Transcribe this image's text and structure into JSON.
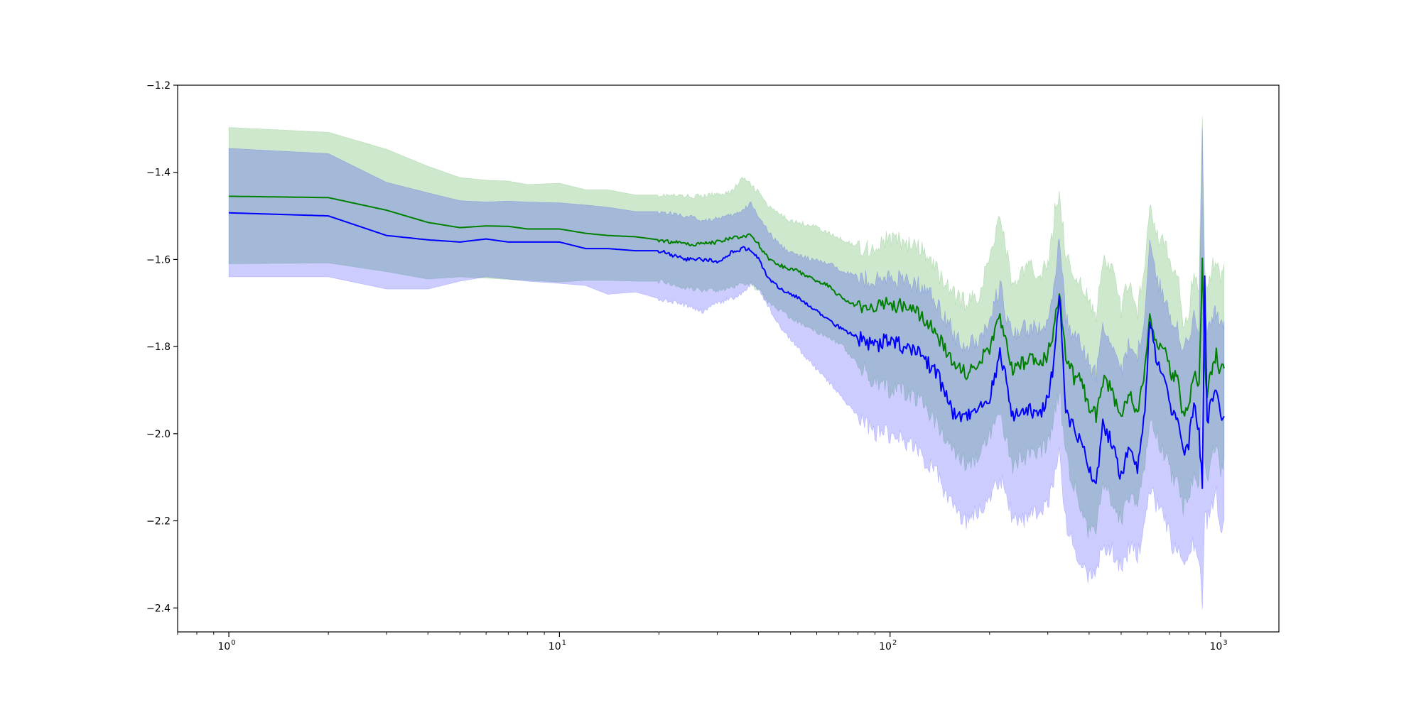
{
  "chart_data": {
    "type": "line",
    "title": "",
    "xlabel": "",
    "ylabel": "",
    "xscale": "log",
    "xlim": [
      0.7,
      1500
    ],
    "ylim": [
      -2.455,
      -1.2
    ],
    "grid": false,
    "legend": "none",
    "x_ticks": [
      {
        "base": "10",
        "exp": "0",
        "value": 1
      },
      {
        "base": "10",
        "exp": "1",
        "value": 10
      },
      {
        "base": "10",
        "exp": "2",
        "value": 100
      },
      {
        "base": "10",
        "exp": "3",
        "value": 1000
      }
    ],
    "y_ticks": [
      {
        "label": "−1.2",
        "value": -1.2
      },
      {
        "label": "−1.4",
        "value": -1.4
      },
      {
        "label": "−1.6",
        "value": -1.6
      },
      {
        "label": "−1.8",
        "value": -1.8
      },
      {
        "label": "−2.0",
        "value": -2.0
      },
      {
        "label": "−2.2",
        "value": -2.2
      },
      {
        "label": "−2.4",
        "value": -2.4
      }
    ],
    "series": [
      {
        "color": "#008000",
        "band_color": "#2ca02c",
        "band_opacity": 0.24,
        "x": [
          1,
          2,
          3,
          4,
          5,
          6,
          7,
          8,
          10,
          12,
          14,
          17,
          20,
          24,
          27,
          30,
          33,
          36,
          38,
          40,
          43,
          47,
          52,
          58,
          65,
          72,
          80,
          90,
          100,
          110,
          125,
          140,
          155,
          170,
          185,
          200,
          215,
          225,
          235,
          250,
          265,
          280,
          300,
          315,
          325,
          340,
          360,
          380,
          400,
          420,
          440,
          470,
          500,
          530,
          560,
          590,
          610,
          625,
          650,
          680,
          710,
          740,
          770,
          800,
          830,
          860,
          880,
          895,
          910,
          940,
          970,
          1000,
          1024
        ],
        "mean": [
          -1.455,
          -1.458,
          -1.487,
          -1.515,
          -1.527,
          -1.523,
          -1.524,
          -1.53,
          -1.53,
          -1.54,
          -1.545,
          -1.548,
          -1.555,
          -1.565,
          -1.565,
          -1.56,
          -1.55,
          -1.548,
          -1.545,
          -1.565,
          -1.6,
          -1.615,
          -1.625,
          -1.645,
          -1.66,
          -1.69,
          -1.71,
          -1.71,
          -1.7,
          -1.71,
          -1.73,
          -1.78,
          -1.84,
          -1.86,
          -1.84,
          -1.8,
          -1.74,
          -1.8,
          -1.86,
          -1.84,
          -1.83,
          -1.84,
          -1.82,
          -1.75,
          -1.67,
          -1.82,
          -1.87,
          -1.88,
          -1.94,
          -1.96,
          -1.88,
          -1.9,
          -1.97,
          -1.9,
          -1.95,
          -1.85,
          -1.72,
          -1.76,
          -1.8,
          -1.82,
          -1.86,
          -1.87,
          -1.96,
          -1.95,
          -1.86,
          -1.9,
          -1.59,
          -1.85,
          -1.9,
          -1.86,
          -1.82,
          -1.86,
          -1.85
        ],
        "lower": [
          -1.61,
          -1.608,
          -1.628,
          -1.645,
          -1.64,
          -1.643,
          -1.646,
          -1.648,
          -1.652,
          -1.648,
          -1.648,
          -1.65,
          -1.65,
          -1.665,
          -1.67,
          -1.67,
          -1.665,
          -1.655,
          -1.66,
          -1.67,
          -1.7,
          -1.72,
          -1.74,
          -1.76,
          -1.78,
          -1.8,
          -1.84,
          -1.88,
          -1.9,
          -1.9,
          -1.93,
          -1.98,
          -2.04,
          -2.07,
          -2.05,
          -2.0,
          -1.96,
          -2.01,
          -2.07,
          -2.06,
          -2.05,
          -2.05,
          -2.02,
          -1.95,
          -1.9,
          -2.05,
          -2.12,
          -2.17,
          -2.23,
          -2.22,
          -2.12,
          -2.15,
          -2.2,
          -2.14,
          -2.16,
          -2.08,
          -1.96,
          -1.98,
          -2.02,
          -2.05,
          -2.1,
          -2.12,
          -2.17,
          -2.15,
          -2.1,
          -2.12,
          -1.85,
          -2.06,
          -2.1,
          -2.05,
          -2.03,
          -2.1,
          -2.05
        ],
        "upper": [
          -1.297,
          -1.308,
          -1.347,
          -1.386,
          -1.412,
          -1.418,
          -1.42,
          -1.428,
          -1.425,
          -1.44,
          -1.44,
          -1.452,
          -1.452,
          -1.455,
          -1.455,
          -1.45,
          -1.445,
          -1.412,
          -1.43,
          -1.445,
          -1.48,
          -1.5,
          -1.515,
          -1.52,
          -1.54,
          -1.555,
          -1.57,
          -1.575,
          -1.55,
          -1.56,
          -1.58,
          -1.63,
          -1.68,
          -1.7,
          -1.68,
          -1.6,
          -1.49,
          -1.58,
          -1.66,
          -1.63,
          -1.62,
          -1.63,
          -1.62,
          -1.49,
          -1.44,
          -1.59,
          -1.64,
          -1.65,
          -1.7,
          -1.74,
          -1.6,
          -1.62,
          -1.72,
          -1.64,
          -1.72,
          -1.6,
          -1.46,
          -1.5,
          -1.55,
          -1.57,
          -1.62,
          -1.63,
          -1.75,
          -1.72,
          -1.62,
          -1.66,
          -1.26,
          -1.63,
          -1.68,
          -1.62,
          -1.6,
          -1.64,
          -1.61
        ]
      },
      {
        "color": "#0000ff",
        "band_color": "#0000ff",
        "band_opacity": 0.2,
        "x": [
          1,
          2,
          3,
          4,
          5,
          6,
          7,
          8,
          10,
          12,
          14,
          17,
          20,
          24,
          27,
          30,
          33,
          36,
          38,
          40,
          43,
          47,
          52,
          58,
          65,
          72,
          80,
          90,
          100,
          110,
          125,
          140,
          155,
          170,
          185,
          200,
          215,
          225,
          235,
          250,
          265,
          280,
          300,
          315,
          325,
          340,
          360,
          380,
          400,
          420,
          440,
          470,
          500,
          530,
          560,
          590,
          610,
          625,
          650,
          680,
          710,
          740,
          770,
          800,
          830,
          860,
          880,
          895,
          910,
          940,
          970,
          1000,
          1024
        ],
        "mean": [
          -1.493,
          -1.5,
          -1.545,
          -1.555,
          -1.56,
          -1.553,
          -1.56,
          -1.56,
          -1.56,
          -1.575,
          -1.575,
          -1.58,
          -1.58,
          -1.6,
          -1.6,
          -1.605,
          -1.585,
          -1.575,
          -1.58,
          -1.6,
          -1.645,
          -1.67,
          -1.685,
          -1.71,
          -1.74,
          -1.76,
          -1.78,
          -1.8,
          -1.78,
          -1.8,
          -1.82,
          -1.87,
          -1.95,
          -1.96,
          -1.94,
          -1.92,
          -1.82,
          -1.88,
          -1.96,
          -1.95,
          -1.94,
          -1.96,
          -1.92,
          -1.82,
          -1.67,
          -1.95,
          -1.99,
          -2.02,
          -2.09,
          -2.11,
          -1.98,
          -2.02,
          -2.1,
          -2.02,
          -2.08,
          -1.95,
          -1.74,
          -1.79,
          -1.85,
          -1.89,
          -1.94,
          -1.97,
          -2.05,
          -2.02,
          -1.93,
          -2.0,
          -2.12,
          -1.65,
          -1.98,
          -1.92,
          -1.9,
          -1.97,
          -1.96
        ],
        "lower": [
          -1.64,
          -1.64,
          -1.668,
          -1.668,
          -1.65,
          -1.64,
          -1.645,
          -1.65,
          -1.655,
          -1.66,
          -1.68,
          -1.675,
          -1.69,
          -1.705,
          -1.72,
          -1.7,
          -1.69,
          -1.675,
          -1.655,
          -1.67,
          -1.71,
          -1.76,
          -1.8,
          -1.84,
          -1.88,
          -1.92,
          -1.96,
          -2.0,
          -2.0,
          -2.02,
          -2.05,
          -2.1,
          -2.17,
          -2.2,
          -2.18,
          -2.15,
          -2.1,
          -2.14,
          -2.2,
          -2.2,
          -2.18,
          -2.19,
          -2.16,
          -2.1,
          -2.05,
          -2.2,
          -2.27,
          -2.3,
          -2.33,
          -2.32,
          -2.26,
          -2.27,
          -2.31,
          -2.26,
          -2.28,
          -2.21,
          -2.12,
          -2.14,
          -2.18,
          -2.2,
          -2.25,
          -2.27,
          -2.3,
          -2.27,
          -2.25,
          -2.28,
          -2.4,
          -2.2,
          -2.2,
          -2.17,
          -2.14,
          -2.22,
          -2.2
        ],
        "upper": [
          -1.345,
          -1.357,
          -1.423,
          -1.447,
          -1.465,
          -1.468,
          -1.466,
          -1.468,
          -1.47,
          -1.475,
          -1.48,
          -1.49,
          -1.49,
          -1.5,
          -1.51,
          -1.505,
          -1.5,
          -1.488,
          -1.47,
          -1.5,
          -1.54,
          -1.57,
          -1.59,
          -1.6,
          -1.61,
          -1.625,
          -1.64,
          -1.65,
          -1.64,
          -1.65,
          -1.66,
          -1.7,
          -1.77,
          -1.8,
          -1.78,
          -1.74,
          -1.66,
          -1.73,
          -1.78,
          -1.76,
          -1.76,
          -1.76,
          -1.74,
          -1.66,
          -1.55,
          -1.73,
          -1.78,
          -1.8,
          -1.84,
          -1.86,
          -1.76,
          -1.79,
          -1.86,
          -1.79,
          -1.82,
          -1.72,
          -1.56,
          -1.6,
          -1.66,
          -1.69,
          -1.74,
          -1.74,
          -1.82,
          -1.78,
          -1.72,
          -1.76,
          -1.28,
          -1.72,
          -1.76,
          -1.73,
          -1.72,
          -1.76,
          -1.74
        ]
      }
    ]
  }
}
